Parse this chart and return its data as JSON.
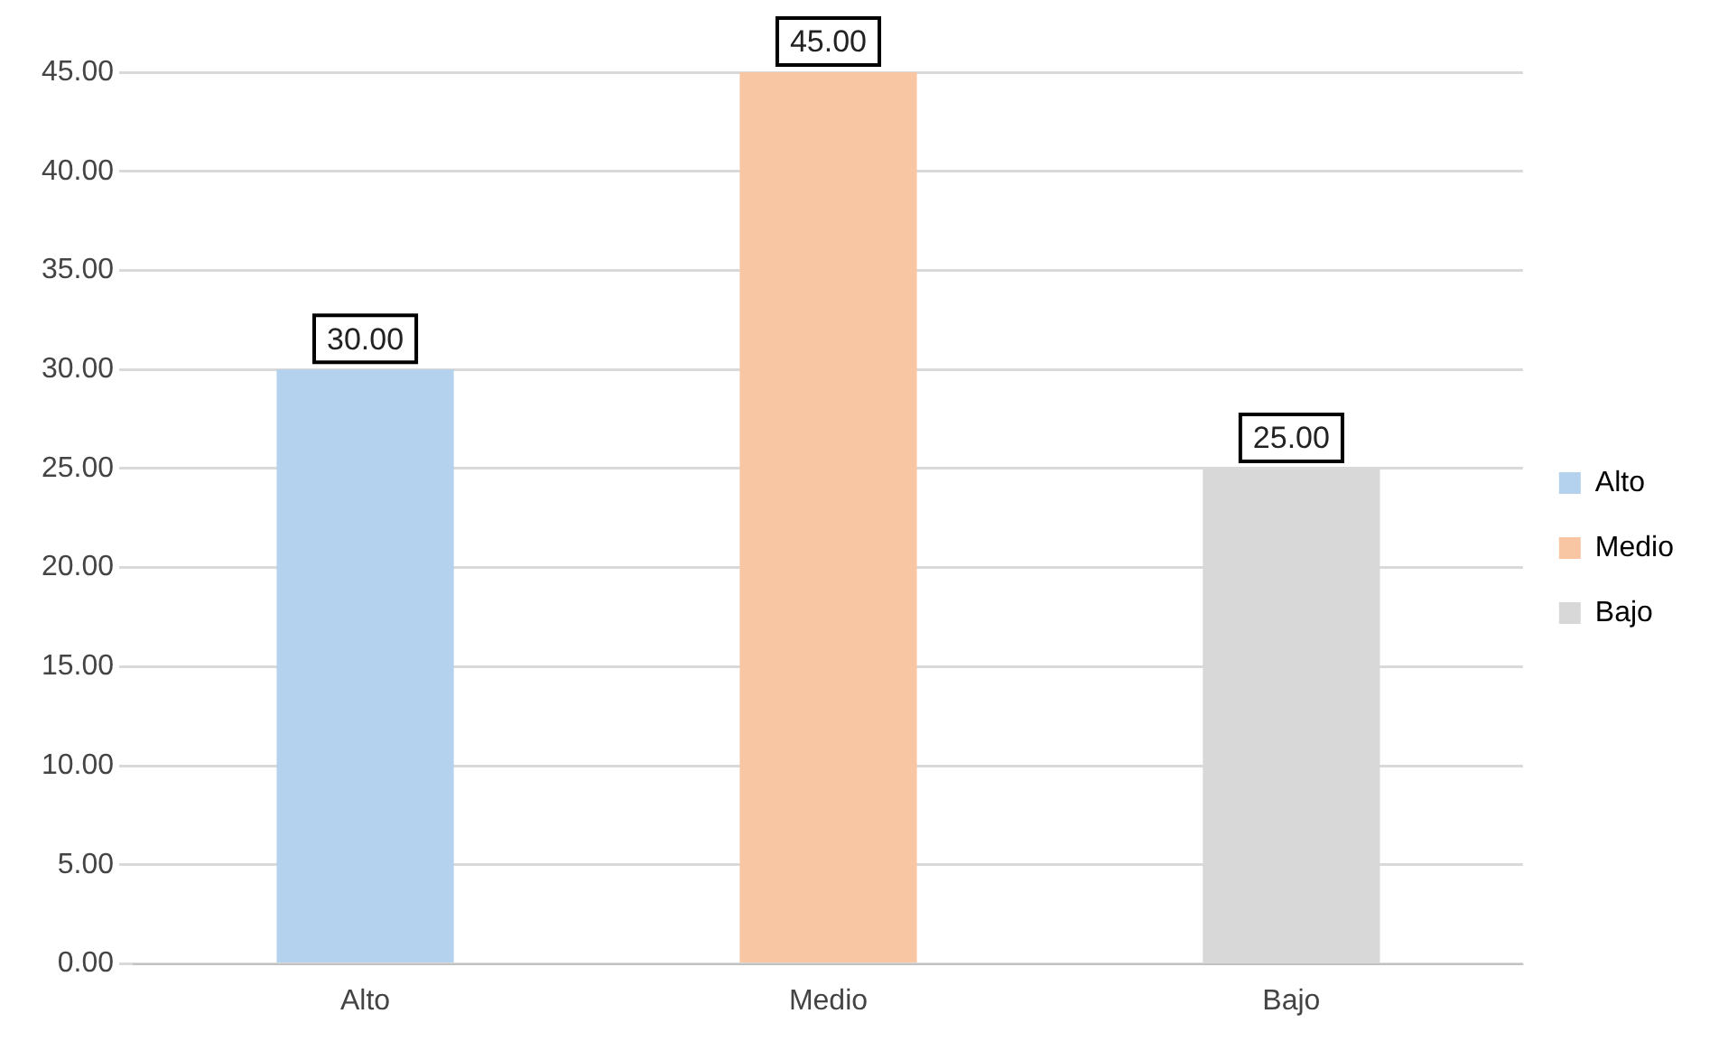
{
  "chart_data": {
    "type": "bar",
    "categories": [
      "Alto",
      "Medio",
      "Bajo"
    ],
    "series": [
      {
        "name": "Alto",
        "color": "#b4d1ed",
        "values": [
          30,
          null,
          null
        ],
        "value_labels": [
          "30.00",
          null,
          null
        ]
      },
      {
        "name": "Medio",
        "color": "#f8c6a3",
        "values": [
          null,
          45,
          null
        ],
        "value_labels": [
          null,
          "45.00",
          null
        ]
      },
      {
        "name": "Bajo",
        "color": "#d8d8d8",
        "values": [
          null,
          null,
          25
        ],
        "value_labels": [
          null,
          null,
          "25.00"
        ]
      }
    ],
    "ylim": [
      0,
      45
    ],
    "yticks": [
      {
        "value": 0,
        "label": "0.00"
      },
      {
        "value": 5,
        "label": "5.00"
      },
      {
        "value": 10,
        "label": "10.00"
      },
      {
        "value": 15,
        "label": "15.00"
      },
      {
        "value": 20,
        "label": "20.00"
      },
      {
        "value": 25,
        "label": "25.00"
      },
      {
        "value": 30,
        "label": "30.00"
      },
      {
        "value": 35,
        "label": "35.00"
      },
      {
        "value": 40,
        "label": "40.00"
      },
      {
        "value": 45,
        "label": "45.00"
      }
    ],
    "grid": "y",
    "legend": "right"
  }
}
